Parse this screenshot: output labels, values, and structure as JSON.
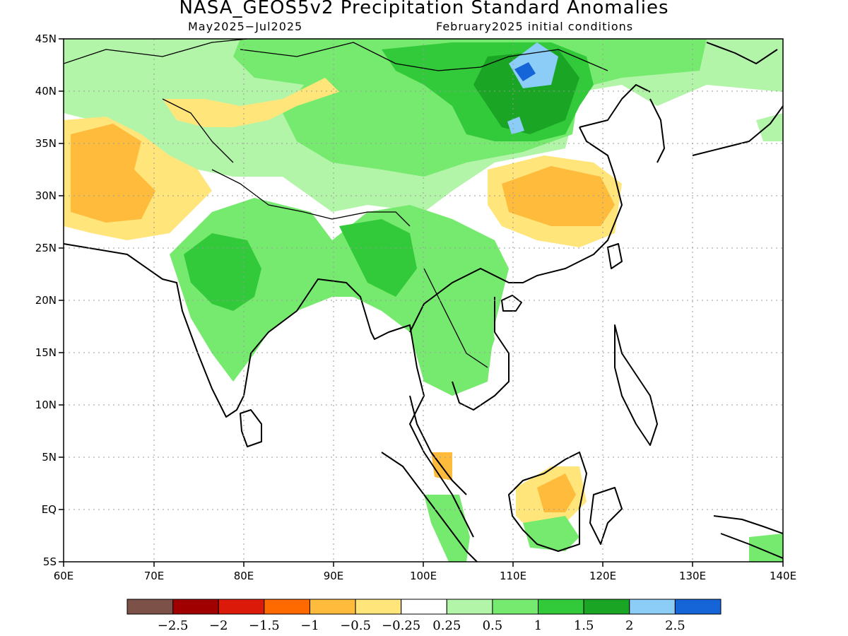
{
  "title": "NASA_GEOS5v2 Precipitation Standard Anomalies",
  "subtitle_left": "May2025−Jul2025",
  "subtitle_right": "February2025 initial conditions",
  "map": {
    "lon_range": [
      60,
      140
    ],
    "lat_range": [
      -5,
      45
    ],
    "lon_ticks": [
      "60E",
      "70E",
      "80E",
      "90E",
      "100E",
      "110E",
      "120E",
      "130E",
      "140E"
    ],
    "lat_ticks": [
      "5S",
      "EQ",
      "5N",
      "10N",
      "15N",
      "20N",
      "25N",
      "30N",
      "35N",
      "40N",
      "45N"
    ],
    "grid": "dotted"
  },
  "colorbar": {
    "colors": [
      "#7b5148",
      "#a10000",
      "#dc1a0a",
      "#ff6a00",
      "#ffbb3c",
      "#ffe57a",
      "#ffffff",
      "#b3f5a8",
      "#76ea6e",
      "#32c93a",
      "#1aa524",
      "#8ccdf8",
      "#1565d8"
    ],
    "labels": [
      "−2.5",
      "−2",
      "−1.5",
      "−1",
      "−0.5",
      "−0.25",
      "0.25",
      "0.5",
      "1",
      "1.5",
      "2",
      "2.5"
    ]
  }
}
